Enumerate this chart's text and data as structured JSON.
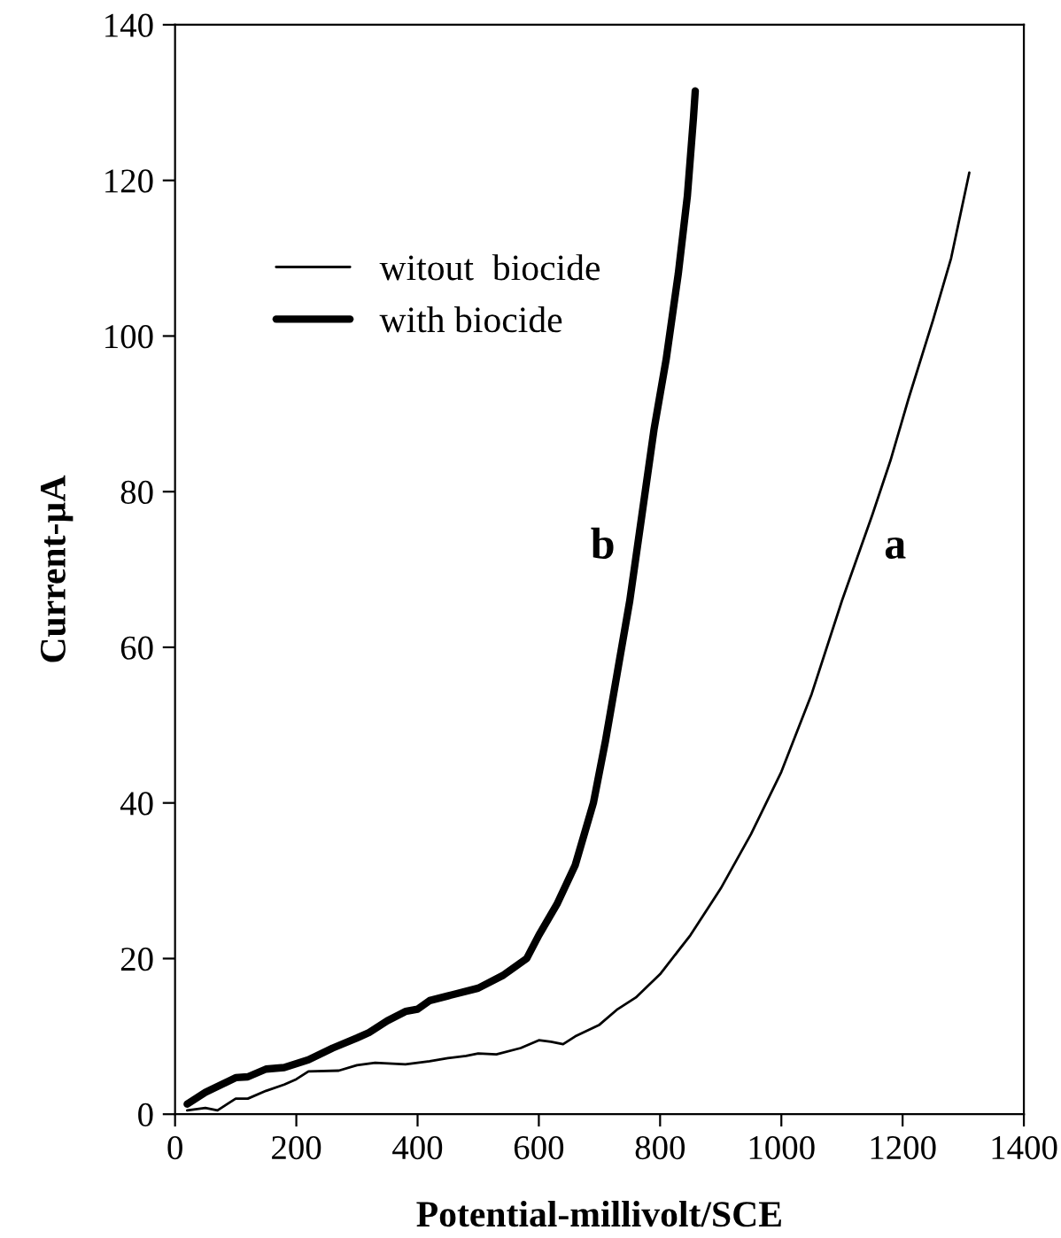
{
  "chart_data": {
    "type": "line",
    "xlabel": "Potential-millivolt/SCE",
    "ylabel": "Current-µA",
    "xlim": [
      0,
      1400
    ],
    "ylim": [
      0,
      140
    ],
    "xticks": [
      0,
      200,
      400,
      600,
      800,
      1000,
      1200,
      1400
    ],
    "yticks": [
      0,
      20,
      40,
      60,
      80,
      100,
      120,
      140
    ],
    "grid": false,
    "legend": "top left",
    "marker": "none",
    "line_style": "solid",
    "annotations": [
      "a",
      "b"
    ],
    "series": [
      {
        "name": "witout  biocide",
        "color": "#000000",
        "x": [
          20,
          50,
          70,
          100,
          120,
          150,
          180,
          200,
          220,
          270,
          300,
          330,
          380,
          420,
          450,
          480,
          500,
          530,
          570,
          600,
          620,
          640,
          660,
          700,
          730,
          760,
          800,
          850,
          900,
          950,
          1000,
          1050,
          1100,
          1150,
          1180,
          1210,
          1250,
          1280,
          1310
        ],
        "values": [
          0.5,
          0.8,
          0.5,
          2,
          2,
          3,
          3.8,
          4.5,
          5.5,
          5.6,
          6.3,
          6.6,
          6.4,
          6.8,
          7.2,
          7.5,
          7.8,
          7.7,
          8.5,
          9.5,
          9.3,
          9,
          10,
          11.5,
          13.5,
          15,
          18,
          23,
          29,
          36,
          44,
          54,
          66,
          77,
          84,
          92,
          102,
          110,
          121
        ]
      },
      {
        "name": "with biocide",
        "color": "#000000",
        "x": [
          20,
          50,
          100,
          120,
          150,
          180,
          220,
          260,
          300,
          320,
          350,
          380,
          400,
          420,
          450,
          500,
          540,
          580,
          600,
          630,
          660,
          690,
          710,
          730,
          750,
          770,
          790,
          810,
          830,
          845,
          855,
          858
        ],
        "values": [
          1.3,
          2.8,
          4.7,
          4.8,
          5.8,
          6,
          7,
          8.5,
          9.8,
          10.5,
          12,
          13.2,
          13.5,
          14.6,
          15.2,
          16.2,
          17.8,
          20,
          23,
          27,
          32,
          40,
          48,
          57,
          66,
          77,
          88,
          97,
          108,
          118,
          128,
          131.5
        ]
      }
    ]
  }
}
